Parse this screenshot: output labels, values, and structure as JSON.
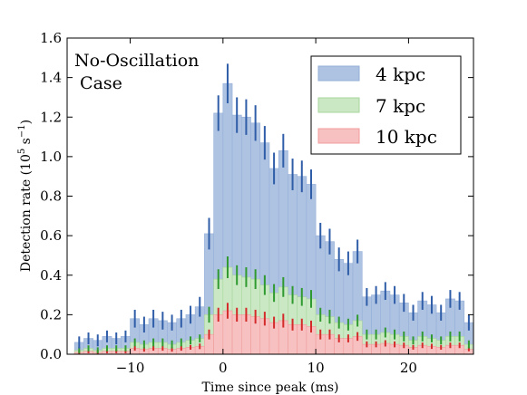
{
  "chart_data": {
    "type": "bar",
    "xlabel": "Time since peak (ms)",
    "ylabel": "Detection rate (10^5 s^-1)",
    "ylabel_parts": {
      "pre": "Detection rate (10",
      "exp1": "5",
      "mid": " s",
      "exp2": "−1",
      "post": ")"
    },
    "xlim": [
      -16.8,
      27
    ],
    "ylim": [
      0,
      1.6
    ],
    "bin_width": 1,
    "x_ticks": [
      -10,
      0,
      10,
      20
    ],
    "x_tick_labels": [
      "−10",
      "0",
      "10",
      "20"
    ],
    "y_ticks": [
      0.0,
      0.2,
      0.4,
      0.6,
      0.8,
      1.0,
      1.2,
      1.4,
      1.6
    ],
    "y_tick_labels": [
      "0.0",
      "0.2",
      "0.4",
      "0.6",
      "0.8",
      "1.0",
      "1.2",
      "1.4",
      "1.6"
    ],
    "annotation_lines": [
      "No-Oscillation",
      " Case"
    ],
    "legend_position": "top-right",
    "x": [
      -16,
      -15,
      -14,
      -13,
      -12,
      -11,
      -10,
      -9,
      -8,
      -7,
      -6,
      -5,
      -4,
      -3,
      -2,
      -1,
      0,
      1,
      2,
      3,
      4,
      5,
      6,
      7,
      8,
      9,
      10,
      11,
      12,
      13,
      14,
      15,
      16,
      17,
      18,
      19,
      20,
      21,
      22,
      23,
      24,
      25,
      26
    ],
    "series": [
      {
        "name": "4 kpc",
        "color": "#aec2e2",
        "edge": "#96b0d8",
        "err_color": "#2f5da8",
        "values": [
          0.06,
          0.08,
          0.07,
          0.09,
          0.08,
          0.09,
          0.18,
          0.15,
          0.18,
          0.17,
          0.16,
          0.18,
          0.2,
          0.24,
          0.61,
          1.22,
          1.37,
          1.21,
          1.2,
          1.17,
          1.07,
          0.94,
          1.03,
          0.91,
          0.9,
          0.86,
          0.6,
          0.57,
          0.48,
          0.46,
          0.52,
          0.29,
          0.3,
          0.32,
          0.3,
          0.26,
          0.21,
          0.27,
          0.25,
          0.21,
          0.28,
          0.27,
          0.16
        ],
        "errors": [
          0.03,
          0.03,
          0.03,
          0.03,
          0.03,
          0.03,
          0.045,
          0.04,
          0.045,
          0.045,
          0.04,
          0.045,
          0.045,
          0.05,
          0.08,
          0.09,
          0.1,
          0.09,
          0.09,
          0.09,
          0.085,
          0.08,
          0.085,
          0.08,
          0.08,
          0.075,
          0.065,
          0.065,
          0.06,
          0.06,
          0.06,
          0.045,
          0.045,
          0.045,
          0.045,
          0.045,
          0.04,
          0.045,
          0.045,
          0.04,
          0.045,
          0.045,
          0.04
        ]
      },
      {
        "name": "7 kpc",
        "color": "#cbe8c4",
        "edge": "#a7d69c",
        "err_color": "#2f9a2f",
        "values": [
          0.02,
          0.03,
          0.02,
          0.03,
          0.03,
          0.03,
          0.06,
          0.05,
          0.06,
          0.06,
          0.05,
          0.06,
          0.07,
          0.08,
          0.2,
          0.38,
          0.44,
          0.4,
          0.39,
          0.38,
          0.35,
          0.31,
          0.34,
          0.3,
          0.29,
          0.28,
          0.2,
          0.19,
          0.16,
          0.15,
          0.17,
          0.1,
          0.1,
          0.11,
          0.1,
          0.09,
          0.07,
          0.09,
          0.08,
          0.07,
          0.09,
          0.09,
          0.05
        ],
        "errors": [
          0.015,
          0.015,
          0.015,
          0.015,
          0.015,
          0.015,
          0.02,
          0.02,
          0.02,
          0.02,
          0.02,
          0.02,
          0.02,
          0.02,
          0.04,
          0.05,
          0.055,
          0.05,
          0.05,
          0.05,
          0.05,
          0.045,
          0.05,
          0.045,
          0.045,
          0.045,
          0.035,
          0.035,
          0.03,
          0.03,
          0.03,
          0.025,
          0.025,
          0.025,
          0.025,
          0.025,
          0.02,
          0.025,
          0.02,
          0.02,
          0.025,
          0.025,
          0.02
        ]
      },
      {
        "name": "10 kpc",
        "color": "#f7c1c1",
        "edge": "#f09c9c",
        "err_color": "#d42a2a",
        "values": [
          0.01,
          0.015,
          0.01,
          0.015,
          0.015,
          0.015,
          0.03,
          0.025,
          0.03,
          0.03,
          0.025,
          0.03,
          0.035,
          0.04,
          0.1,
          0.2,
          0.22,
          0.2,
          0.2,
          0.19,
          0.18,
          0.16,
          0.17,
          0.15,
          0.15,
          0.14,
          0.1,
          0.1,
          0.08,
          0.08,
          0.09,
          0.05,
          0.05,
          0.055,
          0.05,
          0.045,
          0.035,
          0.045,
          0.04,
          0.035,
          0.045,
          0.045,
          0.025
        ],
        "errors": [
          0.01,
          0.01,
          0.01,
          0.01,
          0.01,
          0.01,
          0.012,
          0.012,
          0.012,
          0.012,
          0.012,
          0.012,
          0.012,
          0.014,
          0.025,
          0.035,
          0.04,
          0.035,
          0.035,
          0.035,
          0.035,
          0.03,
          0.035,
          0.03,
          0.03,
          0.03,
          0.025,
          0.025,
          0.02,
          0.02,
          0.022,
          0.015,
          0.015,
          0.016,
          0.015,
          0.014,
          0.012,
          0.014,
          0.013,
          0.012,
          0.014,
          0.014,
          0.01
        ]
      }
    ]
  }
}
